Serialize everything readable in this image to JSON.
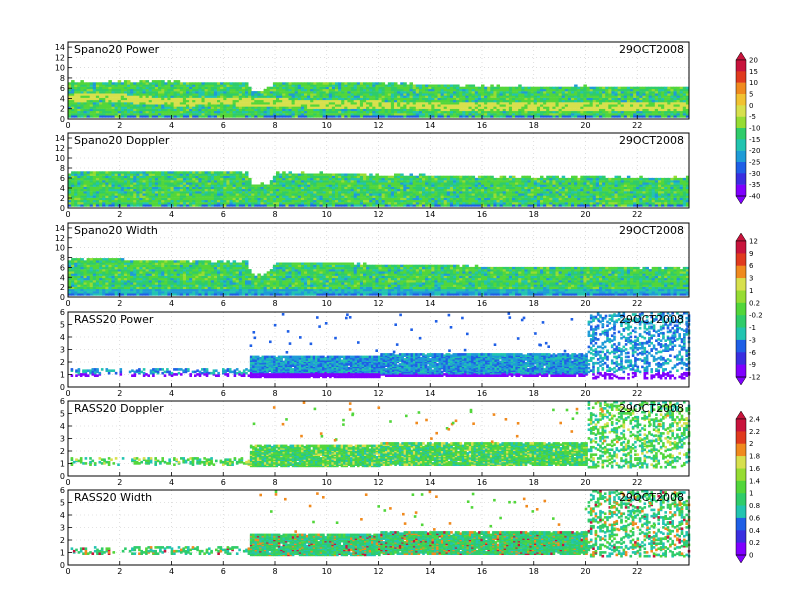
{
  "chart_data": [
    {
      "type": "heatmap",
      "title": "Spano20 Power",
      "date": "29OCT2008",
      "x_ticks": [
        "0",
        "2",
        "4",
        "6",
        "8",
        "10",
        "12",
        "14",
        "16",
        "18",
        "20",
        "22"
      ],
      "y_ticks": [
        "0",
        "2",
        "4",
        "6",
        "8",
        "10",
        "12",
        "14"
      ],
      "xlim": [
        0,
        24
      ],
      "ylim": [
        0,
        15
      ],
      "grid": true,
      "colorbar": {
        "labels": [
          "20",
          "15",
          "10",
          "5",
          "0",
          "-5",
          "-10",
          "-15",
          "-20",
          "-25",
          "-30",
          "-35",
          "-40"
        ]
      },
      "top_boundary": [
        [
          0,
          7
        ],
        [
          0.5,
          7.2
        ],
        [
          1,
          7
        ],
        [
          2,
          7.1
        ],
        [
          3,
          7.3
        ],
        [
          4,
          7.1
        ],
        [
          5,
          7
        ],
        [
          6,
          7
        ],
        [
          6.9,
          7
        ],
        [
          7,
          5.2
        ],
        [
          7.4,
          5.2
        ],
        [
          8,
          7
        ],
        [
          10,
          7
        ],
        [
          12,
          6.9
        ],
        [
          14,
          6.5
        ],
        [
          16,
          6.3
        ],
        [
          18,
          6.1
        ],
        [
          20,
          6.2
        ],
        [
          22,
          6
        ],
        [
          24,
          6
        ]
      ],
      "bright_band": [
        [
          0,
          3.8
        ],
        [
          1,
          4.2
        ],
        [
          2,
          3.9
        ],
        [
          3,
          3.4
        ],
        [
          4,
          3.2
        ],
        [
          6,
          3.3
        ],
        [
          8,
          3.0
        ],
        [
          10,
          2.7
        ],
        [
          12,
          2.5
        ],
        [
          14,
          2.4
        ],
        [
          16,
          2.3
        ],
        [
          18,
          2.2
        ],
        [
          20,
          2.1
        ],
        [
          22,
          2.2
        ],
        [
          24,
          2.3
        ]
      ]
    },
    {
      "type": "heatmap",
      "title": "Spano20 Doppler",
      "date": "29OCT2008",
      "x_ticks": [
        "0",
        "2",
        "4",
        "6",
        "8",
        "10",
        "12",
        "14",
        "16",
        "18",
        "20",
        "22"
      ],
      "y_ticks": [
        "0",
        "2",
        "4",
        "6",
        "8",
        "10",
        "12",
        "14"
      ],
      "xlim": [
        0,
        24
      ],
      "ylim": [
        0,
        15
      ],
      "grid": true,
      "top_boundary": [
        [
          0,
          7
        ],
        [
          1,
          7.1
        ],
        [
          3,
          7.2
        ],
        [
          5,
          7.1
        ],
        [
          6.9,
          7
        ],
        [
          7,
          4.6
        ],
        [
          7.7,
          4.6
        ],
        [
          8,
          6.8
        ],
        [
          10,
          6.8
        ],
        [
          12,
          6.5
        ],
        [
          14,
          6.3
        ],
        [
          16,
          6.1
        ],
        [
          18,
          6.0
        ],
        [
          20,
          6.1
        ],
        [
          22,
          5.9
        ],
        [
          24,
          5.9
        ]
      ]
    },
    {
      "type": "heatmap",
      "title": "Spano20 Width",
      "date": "29OCT2008",
      "x_ticks": [
        "0",
        "2",
        "4",
        "6",
        "8",
        "10",
        "12",
        "14",
        "16",
        "18",
        "20",
        "22"
      ],
      "y_ticks": [
        "0",
        "2",
        "4",
        "6",
        "8",
        "10",
        "12",
        "14"
      ],
      "xlim": [
        0,
        24
      ],
      "ylim": [
        0,
        15
      ],
      "grid": true,
      "colorbar": {
        "labels": [
          "12",
          "9",
          "6",
          "3",
          "1",
          "0.2",
          "-0.2",
          "-1",
          "-3",
          "-6",
          "-9",
          "-12"
        ]
      },
      "top_boundary": [
        [
          0,
          7.5
        ],
        [
          1,
          7.6
        ],
        [
          3,
          7.3
        ],
        [
          5,
          7.0
        ],
        [
          6.9,
          7
        ],
        [
          7,
          4.3
        ],
        [
          7.6,
          4.3
        ],
        [
          8,
          6.8
        ],
        [
          10,
          6.8
        ],
        [
          12,
          6.4
        ],
        [
          14,
          6.2
        ],
        [
          16,
          6.0
        ],
        [
          18,
          5.8
        ],
        [
          20,
          5.9
        ],
        [
          22,
          5.7
        ],
        [
          24,
          5.7
        ]
      ]
    },
    {
      "type": "scatter",
      "title": "RASS20 Power",
      "date": "29OCT2008",
      "x_ticks": [
        "0",
        "2",
        "4",
        "6",
        "8",
        "10",
        "12",
        "14",
        "16",
        "18",
        "20",
        "22"
      ],
      "y_ticks": [
        "0",
        "1",
        "2",
        "3",
        "4",
        "5",
        "6"
      ],
      "xlim": [
        0,
        24
      ],
      "ylim": [
        0,
        6
      ],
      "grid": true
    },
    {
      "type": "scatter",
      "title": "RASS20 Doppler",
      "date": "29OCT2008",
      "x_ticks": [
        "0",
        "2",
        "4",
        "6",
        "8",
        "10",
        "12",
        "14",
        "16",
        "18",
        "20",
        "22"
      ],
      "y_ticks": [
        "0",
        "1",
        "2",
        "3",
        "4",
        "5",
        "6"
      ],
      "xlim": [
        0,
        24
      ],
      "ylim": [
        0,
        6
      ],
      "grid": true,
      "colorbar": {
        "labels": [
          "2.4",
          "2.2",
          "2",
          "1.8",
          "1.6",
          "1.4",
          "1",
          "0.8",
          "0.6",
          "0.4",
          "0.2",
          "0"
        ]
      }
    },
    {
      "type": "scatter",
      "title": "RASS20 Width",
      "date": "29OCT2008",
      "x_ticks": [
        "0",
        "2",
        "4",
        "6",
        "8",
        "10",
        "12",
        "14",
        "16",
        "18",
        "20",
        "22"
      ],
      "y_ticks": [
        "0",
        "1",
        "2",
        "3",
        "4",
        "5",
        "6"
      ],
      "xlim": [
        0,
        24
      ],
      "ylim": [
        0,
        6
      ],
      "grid": true
    }
  ]
}
